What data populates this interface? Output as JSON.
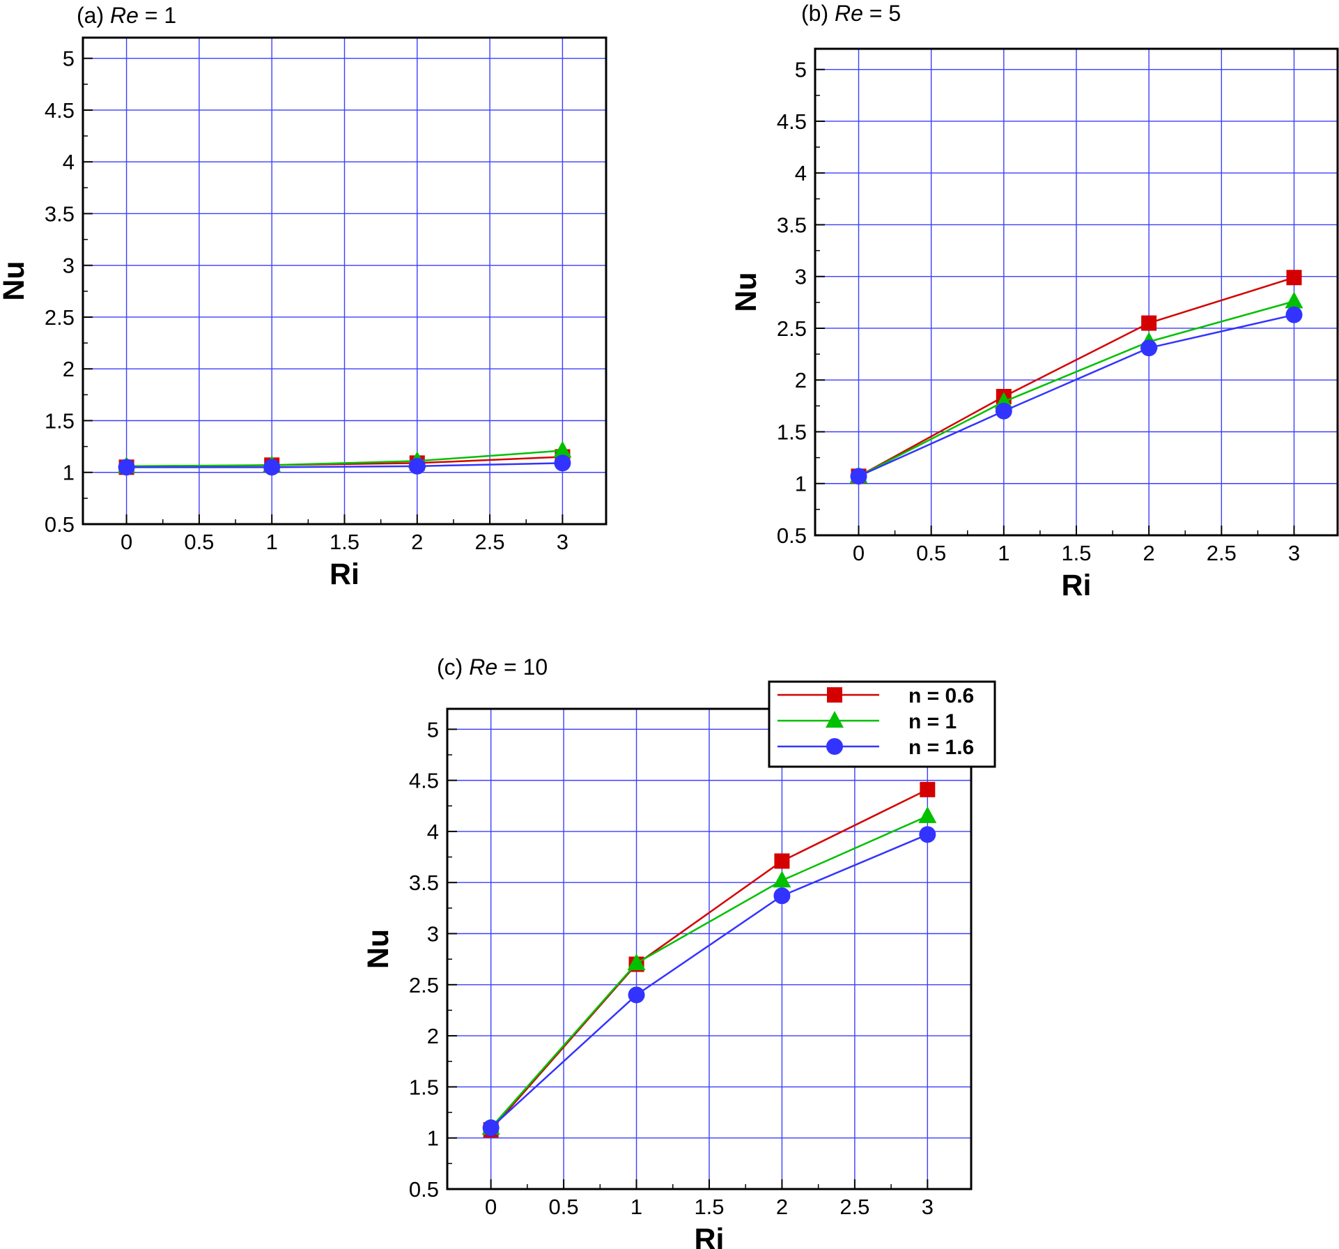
{
  "colors": {
    "grid": "#3c3cff",
    "frame": "#000000"
  },
  "chart_data": [
    {
      "type": "line",
      "title_prefix": "(a) ",
      "title_italic": "Re",
      "title_suffix": " = 1",
      "xlabel": "Ri",
      "ylabel": "Nu",
      "xlim": [
        -0.3,
        3.3
      ],
      "ylim": [
        0.5,
        5.2
      ],
      "xticks": [
        0,
        0.5,
        1,
        1.5,
        2,
        2.5,
        3
      ],
      "xtick_labels": [
        "0",
        "0.5",
        "1",
        "1.5",
        "2",
        "2.5",
        "3"
      ],
      "yticks": [
        0.5,
        1,
        1.5,
        2,
        2.5,
        3,
        3.5,
        4,
        4.5,
        5
      ],
      "ytick_labels": [
        "0.5",
        "1",
        "1.5",
        "2",
        "2.5",
        "3",
        "3.5",
        "4",
        "4.5",
        "5"
      ],
      "grid": true,
      "x": [
        0,
        1,
        2,
        3
      ],
      "series": [
        {
          "name": "n = 0.6",
          "color": "#d40000",
          "marker": "square",
          "values": [
            1.05,
            1.07,
            1.09,
            1.15
          ]
        },
        {
          "name": "n = 1",
          "color": "#00c000",
          "marker": "triangle",
          "values": [
            1.06,
            1.07,
            1.11,
            1.21
          ]
        },
        {
          "name": "n = 1.6",
          "color": "#3333ff",
          "marker": "circle",
          "values": [
            1.05,
            1.05,
            1.06,
            1.09
          ]
        }
      ]
    },
    {
      "type": "line",
      "title_prefix": "(b) ",
      "title_italic": "Re",
      "title_suffix": " = 5",
      "xlabel": "Ri",
      "ylabel": "Nu",
      "xlim": [
        -0.3,
        3.3
      ],
      "ylim": [
        0.5,
        5.2
      ],
      "xticks": [
        0,
        0.5,
        1,
        1.5,
        2,
        2.5,
        3
      ],
      "xtick_labels": [
        "0",
        "0.5",
        "1",
        "1.5",
        "2",
        "2.5",
        "3"
      ],
      "yticks": [
        0.5,
        1,
        1.5,
        2,
        2.5,
        3,
        3.5,
        4,
        4.5,
        5
      ],
      "ytick_labels": [
        "0.5",
        "1",
        "1.5",
        "2",
        "2.5",
        "3",
        "3.5",
        "4",
        "4.5",
        "5"
      ],
      "grid": true,
      "x": [
        0,
        1,
        2,
        3
      ],
      "series": [
        {
          "name": "n = 0.6",
          "color": "#d40000",
          "marker": "square",
          "values": [
            1.07,
            1.84,
            2.55,
            2.99
          ]
        },
        {
          "name": "n = 1",
          "color": "#00c000",
          "marker": "triangle",
          "values": [
            1.07,
            1.79,
            2.37,
            2.76
          ]
        },
        {
          "name": "n = 1.6",
          "color": "#3333ff",
          "marker": "circle",
          "values": [
            1.07,
            1.7,
            2.31,
            2.63
          ]
        }
      ]
    },
    {
      "type": "line",
      "title_prefix": "(c) ",
      "title_italic": "Re",
      "title_suffix": " = 10",
      "xlabel": "Ri",
      "ylabel": "Nu",
      "xlim": [
        -0.3,
        3.3
      ],
      "ylim": [
        0.5,
        5.2
      ],
      "xticks": [
        0,
        0.5,
        1,
        1.5,
        2,
        2.5,
        3
      ],
      "xtick_labels": [
        "0",
        "0.5",
        "1",
        "1.5",
        "2",
        "2.5",
        "3"
      ],
      "yticks": [
        0.5,
        1,
        1.5,
        2,
        2.5,
        3,
        3.5,
        4,
        4.5,
        5
      ],
      "ytick_labels": [
        "0.5",
        "1",
        "1.5",
        "2",
        "2.5",
        "3",
        "3.5",
        "4",
        "4.5",
        "5"
      ],
      "grid": true,
      "legend": "top-right",
      "x": [
        0,
        1,
        2,
        3
      ],
      "series": [
        {
          "name": "n = 0.6",
          "color": "#d40000",
          "marker": "square",
          "values": [
            1.08,
            2.7,
            3.71,
            4.41
          ]
        },
        {
          "name": "n = 1",
          "color": "#00c000",
          "marker": "triangle",
          "values": [
            1.1,
            2.71,
            3.52,
            4.15
          ]
        },
        {
          "name": "n = 1.6",
          "color": "#3333ff",
          "marker": "circle",
          "values": [
            1.1,
            2.4,
            3.37,
            3.97
          ]
        }
      ]
    }
  ]
}
